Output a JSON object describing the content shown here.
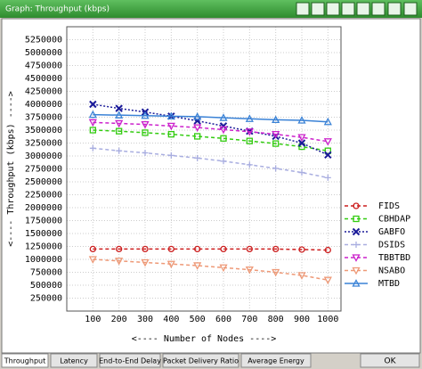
{
  "window": {
    "title": "Graph: Throughput (kbps)"
  },
  "chart_data": {
    "type": "line",
    "x_label": "<---- Number of Nodes ---->",
    "y_label": "<---- Throughput (kbps) ---->",
    "x": [
      100,
      200,
      300,
      400,
      500,
      600,
      700,
      800,
      900,
      1000
    ],
    "xlim": [
      0,
      1050
    ],
    "xticks": [
      100,
      200,
      300,
      400,
      500,
      600,
      700,
      800,
      900,
      1000
    ],
    "ylim": [
      0,
      5500000
    ],
    "yticks": [
      250000,
      500000,
      750000,
      1000000,
      1250000,
      1500000,
      1750000,
      2000000,
      2250000,
      2500000,
      2750000,
      3000000,
      3250000,
      3500000,
      3750000,
      4000000,
      4250000,
      4500000,
      4750000,
      5000000,
      5250000
    ],
    "grid": true,
    "legend": "right",
    "series": [
      {
        "name": "FIDS",
        "color": "#cc1f1f",
        "marker": "circle",
        "dash": "dashed",
        "values": [
          1200000,
          1200000,
          1200000,
          1200000,
          1200000,
          1200000,
          1200000,
          1200000,
          1190000,
          1180000
        ]
      },
      {
        "name": "CBHDAP",
        "color": "#33cc11",
        "marker": "square",
        "dash": "dashed",
        "values": [
          3500000,
          3480000,
          3450000,
          3420000,
          3380000,
          3340000,
          3290000,
          3240000,
          3180000,
          3100000
        ]
      },
      {
        "name": "GABFO",
        "color": "#1a1a99",
        "marker": "x",
        "dash": "dotted",
        "values": [
          4000000,
          3920000,
          3850000,
          3770000,
          3680000,
          3580000,
          3480000,
          3380000,
          3250000,
          3020000
        ]
      },
      {
        "name": "DSIDS",
        "color": "#a9aee0",
        "marker": "plus",
        "dash": "dashed",
        "values": [
          3150000,
          3100000,
          3060000,
          3010000,
          2960000,
          2900000,
          2830000,
          2760000,
          2680000,
          2580000
        ]
      },
      {
        "name": "TBBTBD",
        "color": "#cc22cc",
        "marker": "tri-down",
        "dash": "dashed",
        "values": [
          3650000,
          3630000,
          3610000,
          3580000,
          3550000,
          3510000,
          3470000,
          3420000,
          3360000,
          3280000
        ]
      },
      {
        "name": "NSABO",
        "color": "#ee9977",
        "marker": "tri-down",
        "dash": "dashed",
        "values": [
          1000000,
          970000,
          940000,
          910000,
          880000,
          840000,
          800000,
          750000,
          690000,
          600000
        ]
      },
      {
        "name": "MTBD",
        "color": "#3a82d6",
        "marker": "tri-up",
        "dash": "solid",
        "values": [
          3800000,
          3790000,
          3780000,
          3770000,
          3760000,
          3740000,
          3720000,
          3700000,
          3690000,
          3660000
        ]
      }
    ]
  },
  "tabs": [
    "Throughput",
    "Latency",
    "End-to-End Delay",
    "Packet Delivery Ratio",
    "Average Energy"
  ],
  "ok": "OK"
}
